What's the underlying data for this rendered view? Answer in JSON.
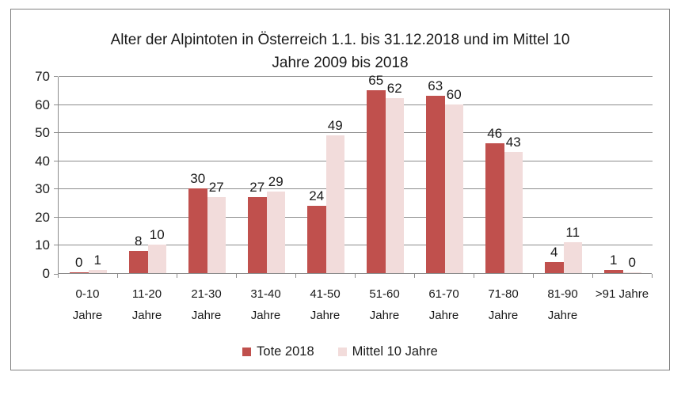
{
  "chart_data": {
    "type": "bar",
    "title": "Alter der Alpintoten in Österreich 1.1. bis 31.12.2018 und im Mittel 10 Jahre 2009 bis 2018",
    "title_lines": [
      "Alter der Alpintoten in Österreich 1.1. bis 31.12.2018 und im Mittel 10",
      "Jahre 2009 bis 2018"
    ],
    "categories": [
      "0-10 Jahre",
      "11-20 Jahre",
      "21-30 Jahre",
      "31-40 Jahre",
      "41-50 Jahre",
      "51-60 Jahre",
      "61-70 Jahre",
      "71-80 Jahre",
      "81-90 Jahre",
      ">91 Jahre"
    ],
    "category_label_lines": [
      [
        "0-10",
        "Jahre"
      ],
      [
        "11-20",
        "Jahre"
      ],
      [
        "21-30",
        "Jahre"
      ],
      [
        "31-40",
        "Jahre"
      ],
      [
        "41-50",
        "Jahre"
      ],
      [
        "51-60",
        "Jahre"
      ],
      [
        "61-70",
        "Jahre"
      ],
      [
        "71-80",
        "Jahre"
      ],
      [
        "81-90",
        "Jahre"
      ],
      [
        ">91 Jahre"
      ]
    ],
    "series": [
      {
        "name": "Tote 2018",
        "color": "#C0504D",
        "values": [
          0,
          8,
          30,
          27,
          24,
          65,
          63,
          46,
          4,
          1
        ]
      },
      {
        "name": "Mittel 10 Jahre",
        "color": "#F2DCDB",
        "values": [
          1,
          10,
          27,
          29,
          49,
          62,
          60,
          43,
          11,
          0
        ]
      }
    ],
    "ylim": [
      0,
      70
    ],
    "yticks": [
      0,
      10,
      20,
      30,
      40,
      50,
      60,
      70
    ],
    "grid": true,
    "data_labels": true,
    "legend_position": "bottom",
    "xlabel": "",
    "ylabel": ""
  },
  "colors": {
    "series_dark": "#C0504D",
    "series_light": "#F2DCDB",
    "gridline": "#8C8C8C",
    "axis": "#8C8C8C",
    "frame_border": "#808080",
    "text": "#1A1A1A",
    "background": "#FFFFFF"
  }
}
